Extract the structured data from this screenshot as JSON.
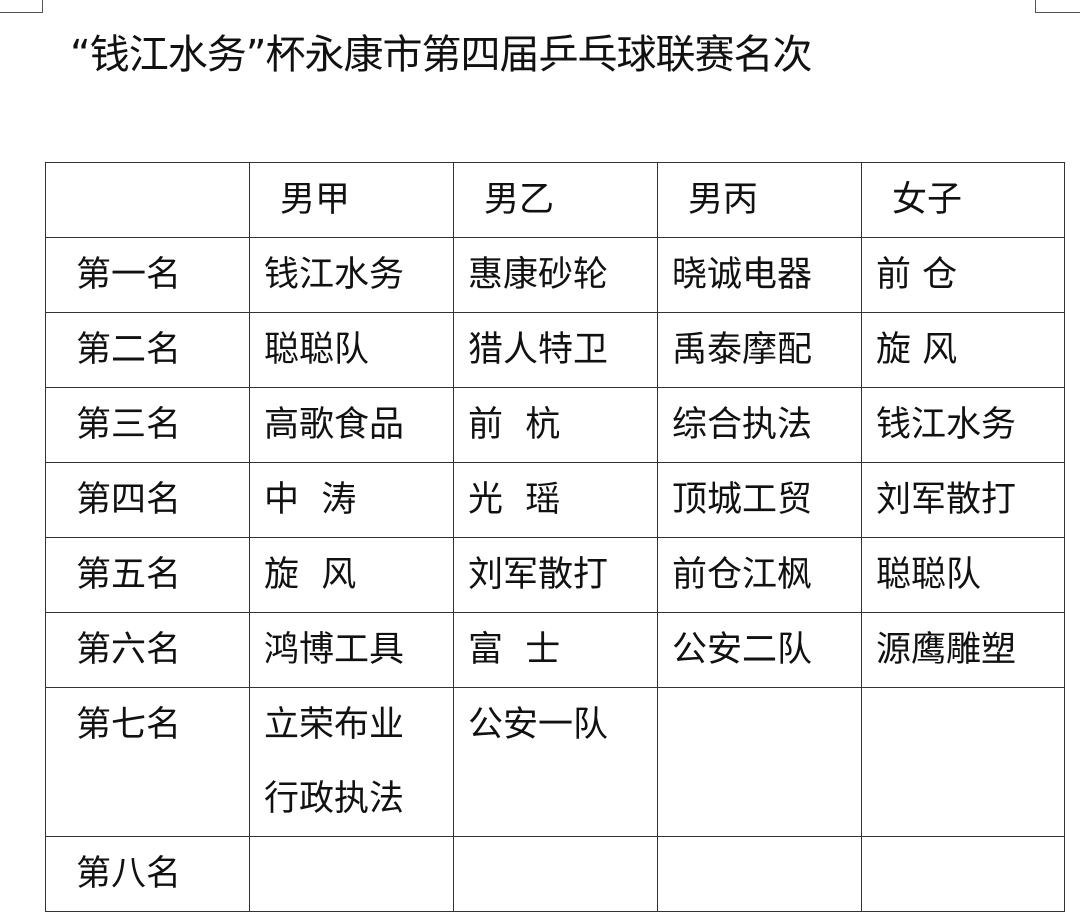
{
  "title": "“钱江水务”杯永康市第四届乒乓球联赛名次",
  "table": {
    "headers": [
      "",
      "男甲",
      "男乙",
      "男丙",
      "女子"
    ],
    "rows": [
      {
        "rank": "第一名",
        "cells": [
          [
            "钱江水务"
          ],
          [
            "惠康砂轮"
          ],
          [
            "晓诚电器"
          ],
          [
            "前 仓"
          ]
        ]
      },
      {
        "rank": "第二名",
        "cells": [
          [
            "聪聪队"
          ],
          [
            "猎人特卫"
          ],
          [
            "禹泰摩配"
          ],
          [
            "旋 风"
          ]
        ]
      },
      {
        "rank": "第三名",
        "cells": [
          [
            "高歌食品"
          ],
          [
            "前  杭"
          ],
          [
            "综合执法"
          ],
          [
            "钱江水务"
          ]
        ]
      },
      {
        "rank": "第四名",
        "cells": [
          [
            "中  涛"
          ],
          [
            "光  瑶"
          ],
          [
            "顶城工贸"
          ],
          [
            "刘军散打"
          ]
        ]
      },
      {
        "rank": "第五名",
        "cells": [
          [
            "旋  风"
          ],
          [
            "刘军散打"
          ],
          [
            "前仓江枫"
          ],
          [
            "聪聪队"
          ]
        ]
      },
      {
        "rank": "第六名",
        "cells": [
          [
            "鸿博工具"
          ],
          [
            "富  士"
          ],
          [
            "公安二队"
          ],
          [
            "源鹰雕塑"
          ]
        ]
      },
      {
        "rank": "第七名",
        "cells": [
          [
            "立荣布业",
            "行政执法"
          ],
          [
            "公安一队"
          ],
          [],
          []
        ]
      },
      {
        "rank": "第八名",
        "cells": [
          [],
          [],
          [],
          []
        ]
      }
    ]
  }
}
